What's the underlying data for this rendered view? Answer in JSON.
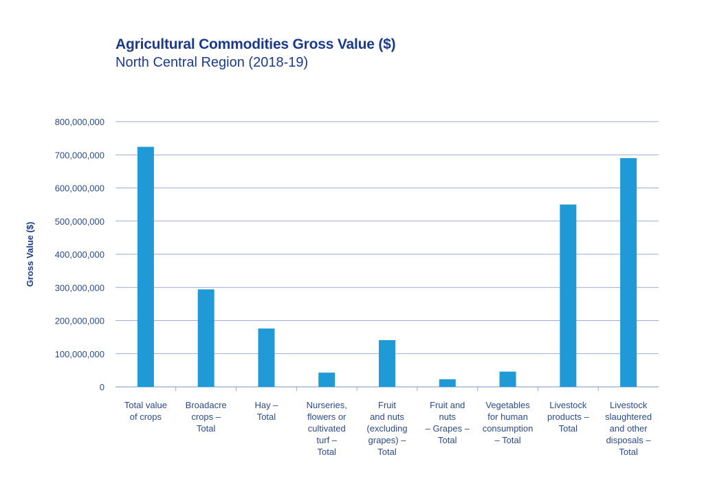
{
  "chart_data": {
    "type": "bar",
    "title": "Agricultural Commodities Gross Value ($)",
    "subtitle": "North Central Region (2018-19)",
    "xlabel": "",
    "ylabel": "Gross Value ($)",
    "ylim": [
      0,
      800000000
    ],
    "yticks": [
      0,
      100000000,
      200000000,
      300000000,
      400000000,
      500000000,
      600000000,
      700000000,
      800000000
    ],
    "ytick_labels": [
      "0",
      "100,000,000",
      "200,000,000",
      "300,000,000",
      "400,000,000",
      "500,000,000",
      "600,000,000",
      "700,000,000",
      "800,000,000"
    ],
    "categories": [
      [
        "Total value",
        "of crops"
      ],
      [
        "Broadacre",
        "crops –",
        "Total"
      ],
      [
        "Hay –",
        "Total"
      ],
      [
        "Nurseries,",
        "flowers or",
        "cultivated",
        "turf –",
        "Total"
      ],
      [
        "Fruit",
        "and nuts",
        "(excluding",
        "grapes) –",
        "Total"
      ],
      [
        "Fruit and",
        "nuts",
        "– Grapes –",
        "Total"
      ],
      [
        "Vegetables",
        "for human",
        "consumption",
        "– Total"
      ],
      [
        "Livestock",
        "products –",
        "Total"
      ],
      [
        "Livestock",
        "slaughtered",
        "and other",
        "disposals –",
        "Total"
      ]
    ],
    "values": [
      724000000,
      294000000,
      176000000,
      43000000,
      141000000,
      23000000,
      46000000,
      550000000,
      690000000
    ],
    "grid": true,
    "legend": "none",
    "colors": {
      "bar": "#1f9ad6",
      "grid": "#7a93c4",
      "text": "#2a4a8e",
      "title": "#1a3a8a"
    }
  }
}
